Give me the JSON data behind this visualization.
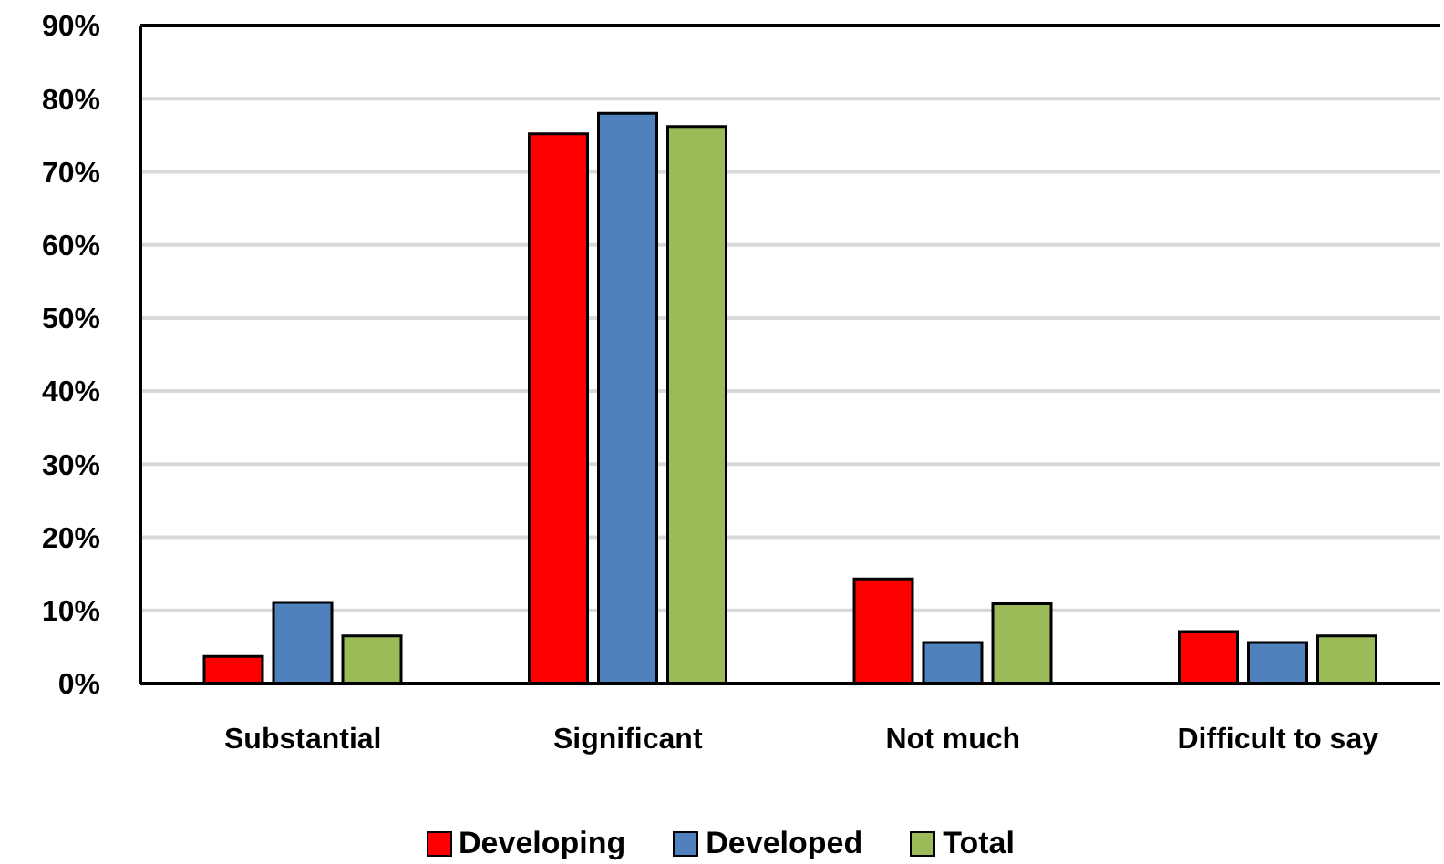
{
  "chart_data": {
    "type": "bar",
    "categories": [
      "Substantial",
      "Significant",
      "Not much",
      "Difficult to say"
    ],
    "series": [
      {
        "name": "Developing",
        "color": "#ff0000",
        "values": [
          3.7,
          75.2,
          14.3,
          7.1
        ]
      },
      {
        "name": "Developed",
        "color": "#4f81bd",
        "values": [
          11.1,
          78.0,
          5.6,
          5.6
        ]
      },
      {
        "name": "Total",
        "color": "#9bbb59",
        "values": [
          6.5,
          76.2,
          10.9,
          6.5
        ]
      }
    ],
    "ylim": [
      0,
      90
    ],
    "yticks": [
      {
        "value": 0,
        "label": "0%"
      },
      {
        "value": 10,
        "label": "10%"
      },
      {
        "value": 20,
        "label": "20%"
      },
      {
        "value": 30,
        "label": "30%"
      },
      {
        "value": 40,
        "label": "40%"
      },
      {
        "value": 50,
        "label": "50%"
      },
      {
        "value": 60,
        "label": "60%"
      },
      {
        "value": 70,
        "label": "70%"
      },
      {
        "value": 80,
        "label": "80%"
      },
      {
        "value": 90,
        "label": "90%"
      }
    ],
    "grid": "y",
    "legend": "bottom"
  }
}
